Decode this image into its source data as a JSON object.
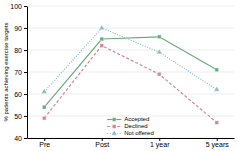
{
  "chart_data": {
    "type": "line",
    "y_label": "% patients achieving exercise targets",
    "categories": [
      "Pre",
      "Post",
      "1 year",
      "5 years"
    ],
    "series": [
      {
        "name": "Accepted",
        "color": "#6aaa7a",
        "values": [
          54,
          85,
          86,
          71
        ],
        "marker": "square",
        "line_style": "solid"
      },
      {
        "name": "Declined",
        "color": "#cc8899",
        "values": [
          49,
          82,
          69,
          47
        ],
        "marker": "square",
        "line_style": "dashed"
      },
      {
        "name": "Not offered",
        "color": "#88bbcc",
        "values": [
          61,
          90,
          79,
          62
        ],
        "marker": "triangle",
        "line_style": "dotted"
      }
    ],
    "ylim": [
      40,
      100
    ],
    "yticks": [
      40,
      50,
      60,
      70,
      80,
      90,
      100
    ],
    "grid": true,
    "legend": "lower center"
  }
}
